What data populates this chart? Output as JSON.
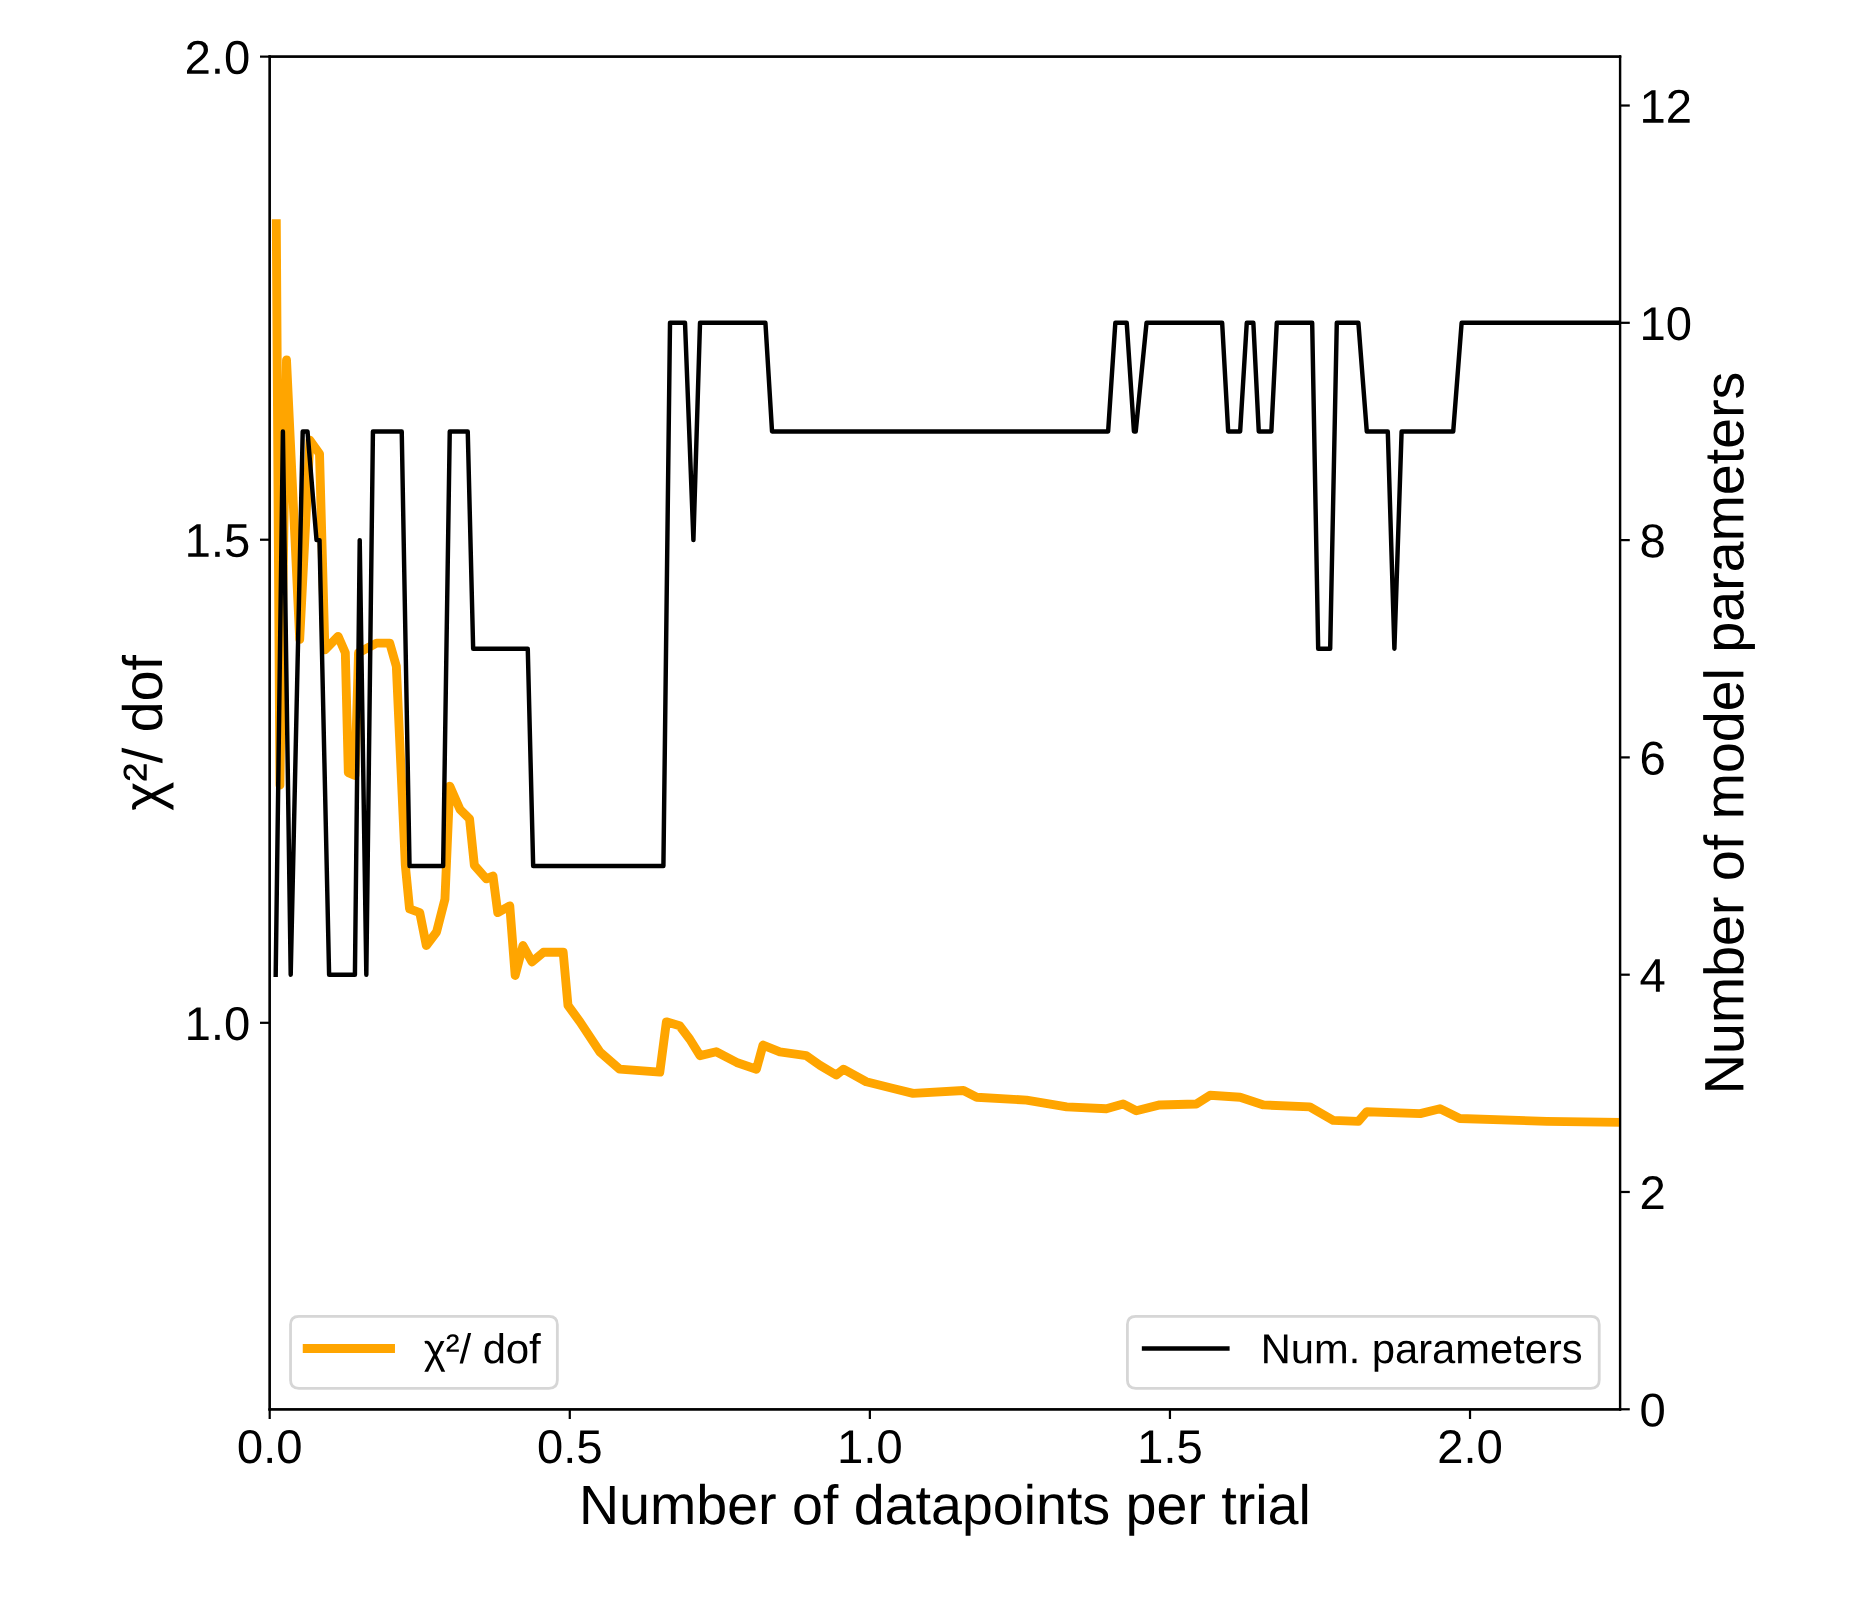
{
  "chart_data": {
    "type": "line",
    "xlabel": "Number of datapoints per trial",
    "ylabel": "χ²/ dof",
    "y2label": "Number of model parameters",
    "xlim": [
      0,
      2.25
    ],
    "xticks": [
      {
        "value": 0,
        "label": "0.0"
      },
      0.5,
      {
        "value": 1,
        "label": "1.0"
      },
      1.5,
      {
        "value": 2,
        "label": "2.0"
      }
    ],
    "ylim": [
      0.6,
      2.0
    ],
    "yticks": [
      {
        "value": 1,
        "label": "1.0"
      },
      1.5,
      {
        "value": 2,
        "label": "2.0"
      }
    ],
    "y2lim": [
      0,
      12.45
    ],
    "y2ticks": [
      0,
      2,
      4,
      6,
      8,
      10,
      12
    ],
    "legend": "bottom",
    "grid": false,
    "line_style": "solid",
    "marker": "none",
    "series": [
      {
        "name": "χ²/ dof",
        "color": "#ffa500",
        "x": [
          0.011,
          0.017,
          0.028,
          0.05,
          0.067,
          0.083,
          0.092,
          0.114,
          0.126,
          0.131,
          0.142,
          0.148,
          0.178,
          0.2,
          0.211,
          0.226,
          0.233,
          0.25,
          0.261,
          0.278,
          0.292,
          0.3,
          0.317,
          0.333,
          0.341,
          0.361,
          0.372,
          0.38,
          0.4,
          0.409,
          0.422,
          0.437,
          0.456,
          0.489,
          0.497,
          0.517,
          0.55,
          0.583,
          0.65,
          0.661,
          0.683,
          0.7,
          0.717,
          0.744,
          0.778,
          0.811,
          0.822,
          0.85,
          0.894,
          0.917,
          0.944,
          0.956,
          0.994,
          1.039,
          1.072,
          1.156,
          1.178,
          1.261,
          1.328,
          1.394,
          1.422,
          1.444,
          1.483,
          1.544,
          1.567,
          1.617,
          1.656,
          1.733,
          1.772,
          1.814,
          1.828,
          1.917,
          1.95,
          1.983,
          2.128,
          2.244
        ],
        "values": [
          1.827,
          1.246,
          1.686,
          1.397,
          1.603,
          1.589,
          1.386,
          1.4,
          1.383,
          1.259,
          1.256,
          1.383,
          1.393,
          1.393,
          1.369,
          1.163,
          1.118,
          1.114,
          1.08,
          1.094,
          1.128,
          1.245,
          1.221,
          1.211,
          1.163,
          1.149,
          1.152,
          1.114,
          1.121,
          1.049,
          1.08,
          1.063,
          1.073,
          1.073,
          1.018,
          1.001,
          0.97,
          0.952,
          0.949,
          1.001,
          0.997,
          0.983,
          0.966,
          0.97,
          0.959,
          0.952,
          0.977,
          0.97,
          0.966,
          0.956,
          0.946,
          0.952,
          0.939,
          0.932,
          0.927,
          0.93,
          0.923,
          0.92,
          0.913,
          0.911,
          0.916,
          0.909,
          0.915,
          0.916,
          0.925,
          0.923,
          0.915,
          0.913,
          0.899,
          0.898,
          0.908,
          0.906,
          0.911,
          0.901,
          0.898,
          0.897
        ]
      },
      {
        "name": "Num. parameters",
        "color": "#000000",
        "axis": "y2",
        "x": [
          0.01,
          0.022,
          0.035,
          0.055,
          0.063,
          0.078,
          0.083,
          0.099,
          0.142,
          0.15,
          0.161,
          0.172,
          0.22,
          0.233,
          0.289,
          0.3,
          0.33,
          0.339,
          0.43,
          0.439,
          0.656,
          0.667,
          0.692,
          0.706,
          0.717,
          0.826,
          0.837,
          1.397,
          1.409,
          1.428,
          1.44,
          1.443,
          1.461,
          1.587,
          1.597,
          1.617,
          1.628,
          1.639,
          1.648,
          1.669,
          1.678,
          1.737,
          1.747,
          1.767,
          1.778,
          1.814,
          1.828,
          1.863,
          1.874,
          1.886,
          1.972,
          1.986,
          2.25
        ],
        "values": [
          4,
          9,
          4,
          9,
          9,
          8,
          8,
          4,
          4,
          8,
          4,
          9,
          9,
          5,
          5,
          9,
          9,
          7,
          7,
          5,
          5,
          10,
          10,
          8,
          10,
          10,
          9,
          9,
          10,
          10,
          9,
          9,
          10,
          10,
          9,
          9,
          10,
          10,
          9,
          9,
          10,
          10,
          7,
          7,
          10,
          10,
          9,
          9,
          7,
          9,
          9,
          10,
          10
        ]
      }
    ]
  }
}
